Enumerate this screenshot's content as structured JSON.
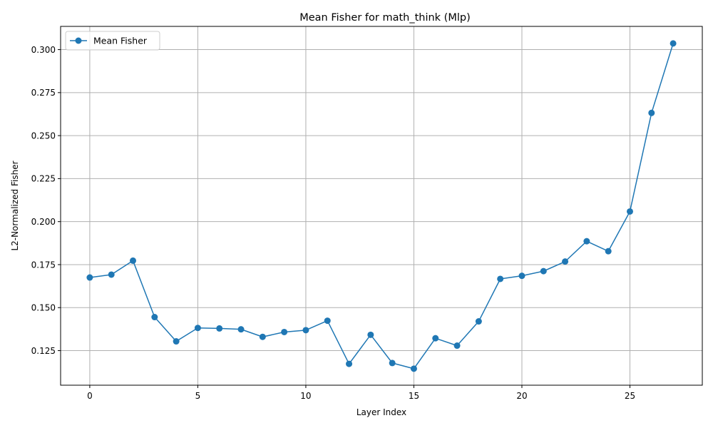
{
  "chart_data": {
    "type": "line",
    "title": "Mean Fisher for math_think (Mlp)",
    "xlabel": "Layer Index",
    "ylabel": "L2-Normalized Fisher",
    "xlim": [
      -1.35,
      28.35
    ],
    "ylim": [
      0.1049,
      0.3135
    ],
    "xticks": [
      0,
      5,
      10,
      15,
      20,
      25
    ],
    "yticks": [
      0.125,
      0.15,
      0.175,
      0.2,
      0.225,
      0.25,
      0.275,
      0.3
    ],
    "ytick_labels": [
      "0.125",
      "0.150",
      "0.175",
      "0.200",
      "0.225",
      "0.250",
      "0.275",
      "0.300"
    ],
    "grid": true,
    "legend_position": "top-left",
    "color": "#1f77b4",
    "series": [
      {
        "name": "Mean Fisher",
        "x": [
          0,
          1,
          2,
          3,
          4,
          5,
          6,
          7,
          8,
          9,
          10,
          11,
          12,
          13,
          14,
          15,
          16,
          17,
          18,
          19,
          20,
          21,
          22,
          23,
          24,
          25,
          26,
          27
        ],
        "values": [
          0.1675,
          0.1692,
          0.1773,
          0.1445,
          0.1304,
          0.1382,
          0.1379,
          0.1374,
          0.133,
          0.1358,
          0.1369,
          0.1424,
          0.1173,
          0.1342,
          0.1178,
          0.1145,
          0.1322,
          0.1279,
          0.142,
          0.1667,
          0.1685,
          0.1712,
          0.1768,
          0.1886,
          0.1828,
          0.2059,
          0.2632,
          0.3036
        ]
      }
    ]
  }
}
